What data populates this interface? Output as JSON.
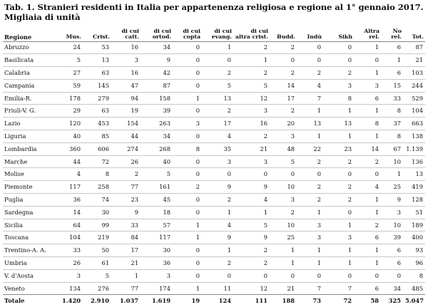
{
  "title": "Tab. 1. Stranieri residenti in Italia per appartenenza religiosa e regione al 1° gennaio 2017. Migliaia di unità",
  "columns": [
    "Regione",
    "Mus.",
    "Crist.",
    "di cui catt.",
    "di cui ortod.",
    "di cui copta",
    "di cui evang.",
    "di cui altra crist.",
    "Budd.",
    "Indù",
    "Sikh",
    "Altra rel.",
    "No rel.",
    "Tot."
  ],
  "rows": [
    [
      "Abruzzo",
      "24",
      "53",
      "16",
      "34",
      "0",
      "1",
      "2",
      "2",
      "0",
      "0",
      "1",
      "6",
      "87"
    ],
    [
      "Basilicata",
      "5",
      "13",
      "3",
      "9",
      "0",
      "0",
      "1",
      "0",
      "0",
      "0",
      "0",
      "1",
      "21"
    ],
    [
      "Calabria",
      "27",
      "63",
      "16",
      "42",
      "0",
      "2",
      "2",
      "2",
      "2",
      "2",
      "1",
      "6",
      "103"
    ],
    [
      "Campania",
      "59",
      "145",
      "47",
      "87",
      "0",
      "5",
      "5",
      "14",
      "4",
      "3",
      "3",
      "15",
      "244"
    ],
    [
      "Emilia-R.",
      "178",
      "279",
      "94",
      "158",
      "1",
      "13",
      "12",
      "17",
      "7",
      "8",
      "6",
      "33",
      "529"
    ],
    [
      "Friuli-V. G.",
      "29",
      "63",
      "19",
      "39",
      "0",
      "2",
      "3",
      "2",
      "1",
      "1",
      "1",
      "8",
      "104"
    ],
    [
      "Lazio",
      "120",
      "453",
      "154",
      "263",
      "3",
      "17",
      "16",
      "20",
      "13",
      "13",
      "8",
      "37",
      "663"
    ],
    [
      "Liguria",
      "40",
      "85",
      "44",
      "34",
      "0",
      "4",
      "2",
      "3",
      "1",
      "1",
      "1",
      "8",
      "138"
    ],
    [
      "Lombardia",
      "360",
      "606",
      "274",
      "268",
      "8",
      "35",
      "21",
      "48",
      "22",
      "23",
      "14",
      "67",
      "1.139"
    ],
    [
      "Marche",
      "44",
      "72",
      "26",
      "40",
      "0",
      "3",
      "3",
      "5",
      "2",
      "2",
      "2",
      "10",
      "136"
    ],
    [
      "Molise",
      "4",
      "8",
      "2",
      "5",
      "0",
      "0",
      "0",
      "0",
      "0",
      "0",
      "0",
      "1",
      "13"
    ],
    [
      "Piemonte",
      "117",
      "258",
      "77",
      "161",
      "2",
      "9",
      "9",
      "10",
      "2",
      "2",
      "4",
      "25",
      "419"
    ],
    [
      "Puglia",
      "36",
      "74",
      "23",
      "45",
      "0",
      "2",
      "4",
      "3",
      "2",
      "2",
      "1",
      "9",
      "128"
    ],
    [
      "Sardegna",
      "14",
      "30",
      "9",
      "18",
      "0",
      "1",
      "1",
      "2",
      "1",
      "0",
      "1",
      "3",
      "51"
    ],
    [
      "Sicilia",
      "64",
      "99",
      "33",
      "57",
      "1",
      "4",
      "5",
      "10",
      "3",
      "1",
      "2",
      "10",
      "189"
    ],
    [
      "Toscana",
      "104",
      "219",
      "84",
      "117",
      "1",
      "9",
      "9",
      "25",
      "3",
      "3",
      "6",
      "39",
      "400"
    ],
    [
      "Trentino-A. A.",
      "33",
      "50",
      "17",
      "30",
      "0",
      "1",
      "2",
      "1",
      "1",
      "1",
      "1",
      "6",
      "93"
    ],
    [
      "Umbria",
      "26",
      "61",
      "21",
      "36",
      "0",
      "2",
      "2",
      "1",
      "1",
      "1",
      "1",
      "6",
      "96"
    ],
    [
      "V. d'Aosta",
      "3",
      "5",
      "1",
      "3",
      "0",
      "0",
      "0",
      "0",
      "0",
      "0",
      "0",
      "0",
      "8"
    ],
    [
      "Veneto",
      "134",
      "276",
      "77",
      "174",
      "1",
      "11",
      "12",
      "21",
      "7",
      "7",
      "6",
      "34",
      "485"
    ]
  ],
  "total": [
    "Totale",
    "1.420",
    "2.910",
    "1.037",
    "1.619",
    "19",
    "124",
    "111",
    "188",
    "73",
    "72",
    "58",
    "325",
    "5.047"
  ]
}
